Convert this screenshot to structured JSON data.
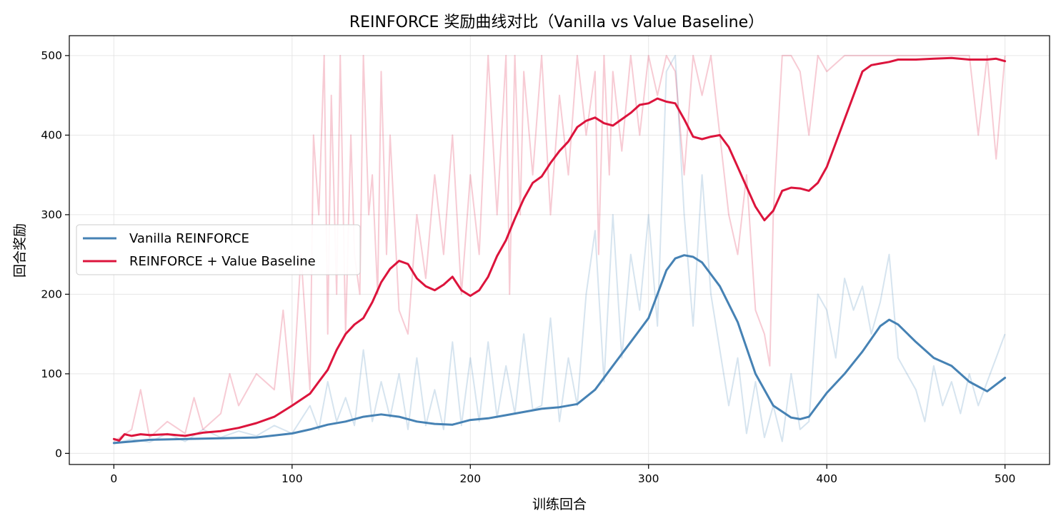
{
  "chart_data": {
    "type": "line",
    "title": "REINFORCE 奖励曲线对比（Vanilla vs Value Baseline）",
    "xlabel": "训练回合",
    "ylabel": "回合奖励",
    "xlim": [
      -25,
      525
    ],
    "ylim": [
      -14,
      525
    ],
    "xticks": [
      0,
      100,
      200,
      300,
      400,
      500
    ],
    "yticks": [
      0,
      100,
      200,
      300,
      400,
      500
    ],
    "grid": true,
    "legend_position": "center-left",
    "series": [
      {
        "name": "Vanilla REINFORCE",
        "color": "#4682b4",
        "smoothed": {
          "x": [
            0,
            10,
            20,
            40,
            60,
            80,
            100,
            110,
            120,
            130,
            140,
            150,
            160,
            170,
            180,
            190,
            200,
            210,
            220,
            230,
            240,
            250,
            260,
            270,
            280,
            290,
            300,
            305,
            310,
            315,
            320,
            325,
            330,
            340,
            350,
            360,
            370,
            380,
            385,
            390,
            400,
            410,
            420,
            430,
            435,
            440,
            450,
            460,
            470,
            480,
            490,
            500
          ],
          "y": [
            13,
            15,
            17,
            18,
            19,
            20,
            25,
            30,
            36,
            40,
            46,
            49,
            46,
            40,
            37,
            36,
            42,
            44,
            48,
            52,
            56,
            58,
            62,
            80,
            110,
            140,
            170,
            200,
            230,
            245,
            249,
            247,
            240,
            210,
            165,
            100,
            60,
            45,
            43,
            46,
            76,
            100,
            128,
            160,
            168,
            162,
            140,
            120,
            110,
            90,
            78,
            95
          ]
        },
        "raw": {
          "x": [
            0,
            10,
            20,
            30,
            40,
            50,
            60,
            70,
            80,
            90,
            100,
            110,
            115,
            120,
            125,
            130,
            135,
            140,
            145,
            150,
            155,
            160,
            165,
            170,
            175,
            180,
            185,
            190,
            195,
            200,
            205,
            210,
            215,
            220,
            225,
            230,
            235,
            240,
            245,
            250,
            255,
            260,
            265,
            270,
            275,
            280,
            285,
            290,
            295,
            300,
            305,
            310,
            315,
            320,
            325,
            330,
            335,
            340,
            345,
            350,
            355,
            360,
            365,
            370,
            375,
            380,
            385,
            390,
            395,
            400,
            405,
            410,
            415,
            420,
            425,
            430,
            435,
            440,
            445,
            450,
            455,
            460,
            465,
            470,
            475,
            480,
            485,
            490,
            495,
            500
          ],
          "y": [
            12,
            18,
            14,
            25,
            15,
            30,
            20,
            28,
            22,
            35,
            25,
            60,
            30,
            90,
            40,
            70,
            35,
            130,
            40,
            90,
            45,
            100,
            30,
            120,
            35,
            80,
            30,
            140,
            35,
            120,
            40,
            140,
            45,
            110,
            50,
            150,
            55,
            60,
            170,
            40,
            120,
            60,
            200,
            280,
            90,
            300,
            120,
            250,
            180,
            300,
            160,
            480,
            500,
            300,
            160,
            350,
            200,
            130,
            60,
            120,
            25,
            90,
            20,
            60,
            15,
            100,
            30,
            40,
            200,
            180,
            120,
            220,
            180,
            210,
            150,
            190,
            250,
            120,
            100,
            80,
            40,
            110,
            60,
            90,
            50,
            100,
            60,
            90,
            120,
            150
          ]
        }
      },
      {
        "name": "REINFORCE + Value Baseline",
        "color": "#dc143c",
        "smoothed": {
          "x": [
            0,
            3,
            6,
            10,
            15,
            20,
            30,
            40,
            50,
            60,
            70,
            80,
            90,
            100,
            110,
            115,
            120,
            125,
            130,
            135,
            140,
            145,
            150,
            155,
            160,
            165,
            170,
            175,
            180,
            185,
            190,
            195,
            200,
            205,
            210,
            215,
            220,
            225,
            230,
            235,
            240,
            245,
            250,
            255,
            260,
            265,
            270,
            275,
            280,
            285,
            290,
            295,
            300,
            305,
            310,
            315,
            320,
            325,
            330,
            335,
            340,
            345,
            350,
            355,
            360,
            365,
            370,
            375,
            380,
            385,
            390,
            395,
            400,
            405,
            410,
            415,
            420,
            425,
            430,
            435,
            440,
            450,
            460,
            470,
            480,
            490,
            495,
            500
          ],
          "y": [
            18,
            16,
            24,
            22,
            24,
            23,
            24,
            22,
            26,
            28,
            32,
            38,
            46,
            60,
            75,
            90,
            105,
            130,
            150,
            162,
            170,
            190,
            215,
            232,
            242,
            238,
            220,
            210,
            205,
            212,
            222,
            205,
            198,
            205,
            222,
            248,
            268,
            295,
            320,
            340,
            348,
            365,
            380,
            392,
            410,
            418,
            422,
            415,
            412,
            420,
            428,
            438,
            440,
            446,
            442,
            440,
            420,
            398,
            395,
            398,
            400,
            385,
            360,
            335,
            310,
            293,
            305,
            330,
            334,
            333,
            330,
            340,
            360,
            390,
            420,
            450,
            480,
            488,
            490,
            492,
            495,
            495,
            496,
            497,
            495,
            495,
            496,
            493
          ]
        },
        "raw": {
          "x": [
            0,
            10,
            15,
            20,
            30,
            40,
            45,
            50,
            60,
            65,
            70,
            80,
            90,
            95,
            100,
            105,
            110,
            112,
            115,
            118,
            120,
            122,
            125,
            127,
            130,
            133,
            135,
            138,
            140,
            143,
            145,
            148,
            150,
            153,
            155,
            160,
            165,
            170,
            175,
            180,
            185,
            190,
            195,
            200,
            205,
            210,
            215,
            220,
            222,
            225,
            228,
            230,
            235,
            240,
            245,
            250,
            255,
            260,
            265,
            270,
            272,
            275,
            278,
            280,
            285,
            290,
            295,
            300,
            305,
            310,
            315,
            320,
            325,
            330,
            335,
            340,
            345,
            350,
            355,
            360,
            365,
            368,
            370,
            375,
            380,
            385,
            390,
            395,
            400,
            410,
            420,
            430,
            440,
            450,
            460,
            470,
            480,
            485,
            490,
            495,
            500
          ],
          "y": [
            15,
            30,
            80,
            20,
            40,
            25,
            70,
            30,
            50,
            100,
            60,
            100,
            80,
            180,
            60,
            250,
            80,
            400,
            300,
            500,
            150,
            450,
            200,
            500,
            150,
            400,
            250,
            200,
            500,
            300,
            350,
            200,
            480,
            250,
            400,
            180,
            150,
            300,
            220,
            350,
            250,
            400,
            200,
            350,
            250,
            500,
            300,
            500,
            200,
            500,
            300,
            480,
            350,
            500,
            300,
            450,
            350,
            500,
            400,
            480,
            250,
            500,
            350,
            480,
            380,
            500,
            400,
            500,
            450,
            500,
            480,
            350,
            500,
            450,
            500,
            400,
            300,
            250,
            350,
            180,
            150,
            110,
            300,
            500,
            500,
            480,
            400,
            500,
            480,
            500,
            500,
            500,
            500,
            500,
            500,
            500,
            500,
            400,
            500,
            370,
            500
          ]
        }
      }
    ]
  }
}
